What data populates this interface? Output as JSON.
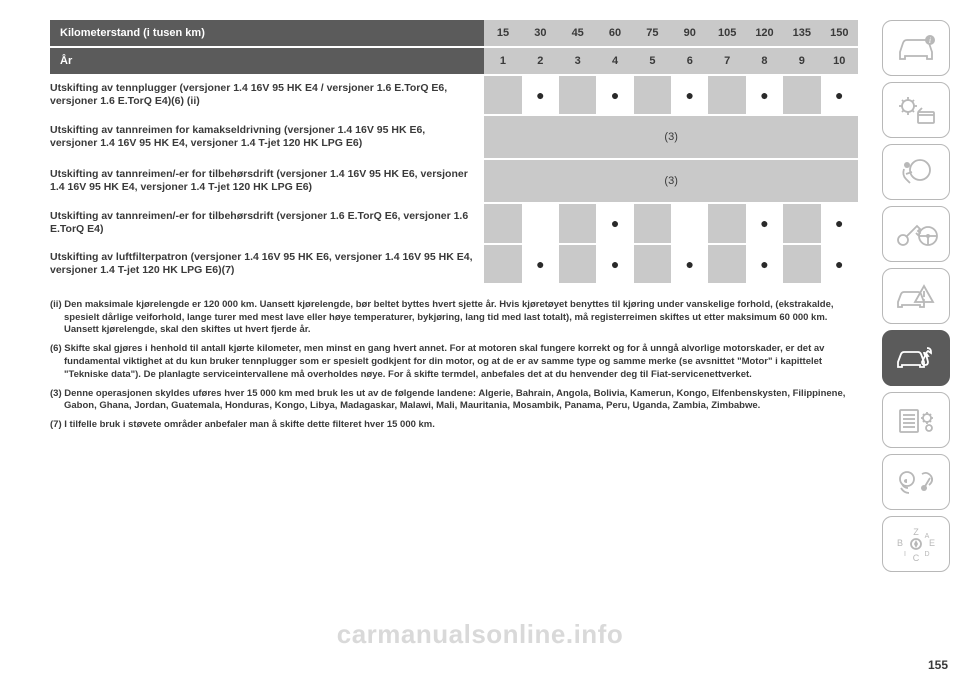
{
  "colors": {
    "header_bg": "#5b5b5b",
    "header_text": "#ffffff",
    "num_bg": "#c9c9c9",
    "num_text": "#3a3a3a",
    "body_text": "#3a3a3a",
    "page_bg": "#ffffff",
    "icon_stroke": "#b8b8b8",
    "icon_active_bg": "#5b5b5b",
    "watermark": "#d9d9d9"
  },
  "typography": {
    "family": "Arial",
    "header_size_pt": 11,
    "body_size_pt": 10.5,
    "footnote_size_pt": 9.5,
    "dot_size_pt": 14
  },
  "table": {
    "headers": [
      {
        "label": "Kilometerstand (i tusen km)",
        "values": [
          "15",
          "30",
          "45",
          "60",
          "75",
          "90",
          "105",
          "120",
          "135",
          "150"
        ]
      },
      {
        "label": "År",
        "values": [
          "1",
          "2",
          "3",
          "4",
          "5",
          "6",
          "7",
          "8",
          "9",
          "10"
        ]
      }
    ],
    "col_shading": [
      "g",
      "w",
      "g",
      "w",
      "g",
      "w",
      "g",
      "w",
      "g",
      "w"
    ],
    "rows": [
      {
        "label": "Utskifting av tennplugger (versjoner 1.4 16V 95 HK E4 / versjoner 1.6 E.TorQ E6, versjoner 1.6 E.TorQ E4)(6) (ii)",
        "dots": [
          false,
          true,
          false,
          true,
          false,
          true,
          false,
          true,
          false,
          true
        ]
      },
      {
        "label": "Utskifting av tannreimen for kamakseldrivning (versjoner 1.4 16V 95 HK E6, versjoner 1.4 16V 95 HK E4, versjoner 1.4 T-jet 120 HK LPG E6)",
        "merged_text": "(3)"
      },
      {
        "label": "Utskifting av tannreimen/-er for tilbehørsdrift (versjoner 1.4 16V 95 HK E6, versjoner 1.4 16V 95 HK E4, versjoner 1.4 T-jet 120 HK LPG E6)",
        "merged_text": "(3)"
      },
      {
        "label": "Utskifting av tannreimen/-er for tilbehørsdrift (versjoner 1.6 E.TorQ E6, versjoner 1.6 E.TorQ E4)",
        "dots": [
          false,
          false,
          false,
          true,
          false,
          false,
          false,
          true,
          false,
          true
        ]
      },
      {
        "label": "Utskifting av luftfilterpatron (versjoner 1.4 16V 95 HK E6, versjoner 1.4 16V 95 HK E4, versjoner 1.4 T-jet 120 HK LPG E6)(7)",
        "dots": [
          false,
          true,
          false,
          true,
          false,
          true,
          false,
          true,
          false,
          true
        ]
      }
    ]
  },
  "footnotes": [
    "(ii) Den maksimale kjørelengde er 120 000 km. Uansett kjørelengde, bør beltet byttes hvert sjette år. Hvis kjøretøyet benyttes til kjøring under vanskelige forhold, (ekstrakalde, spesielt dårlige veiforhold, lange turer med mest lave eller høye temperaturer, bykjøring, lang tid med last totalt), må registerreimen skiftes ut etter maksimum 60 000 km. Uansett kjørelengde, skal den skiftes ut hvert fjerde år.",
    "(6) Skifte skal gjøres i henhold til antall kjørte kilometer, men minst en gang hvert annet. For at motoren skal fungere korrekt og for å unngå alvorlige motorskader, er det av fundamental viktighet at du kun bruker tennplugger som er spesielt godkjent for din motor, og at de er av samme type og samme merke (se avsnittet \"Motor\" i kapittelet \"Tekniske data\"). De planlagte serviceintervallene må overholdes nøye. For å skifte termdel, anbefales det at du henvender deg til Fiat-servicenettverket.",
    "(3) Denne operasjonen skyldes uføres hver 15 000 km med bruk les ut av de følgende landene: Algerie, Bahrain, Angola, Bolivia, Kamerun, Kongo, Elfenbenskysten, Filippinene, Gabon, Ghana, Jordan, Guatemala, Honduras, Kongo, Libya, Madagaskar, Malawi, Mali, Mauritania, Mosambik, Panama, Peru, Uganda, Zambia, Zimbabwe.",
    "(7) I tilfelle bruk i støvete områder anbefaler man å skifte dette filteret hver 15 000 km."
  ],
  "sidebar_icons": [
    {
      "name": "car-info-icon",
      "active": false
    },
    {
      "name": "display-icon",
      "active": false
    },
    {
      "name": "airbag-icon",
      "active": false
    },
    {
      "name": "key-steering-icon",
      "active": false
    },
    {
      "name": "warning-car-icon",
      "active": false
    },
    {
      "name": "service-icon",
      "active": true
    },
    {
      "name": "settings-list-icon",
      "active": false
    },
    {
      "name": "media-nav-icon",
      "active": false
    },
    {
      "name": "compass-icon",
      "active": false
    }
  ],
  "page_number": "155",
  "watermark": "carmanualsonline.info"
}
